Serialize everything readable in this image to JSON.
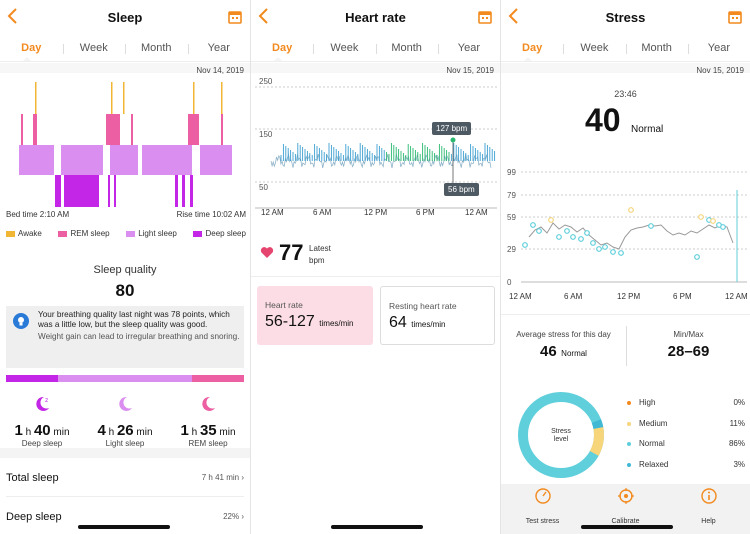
{
  "colors": {
    "accent": "#f28a1f",
    "awake": "#f2b635",
    "rem": "#ec5fa2",
    "light": "#da8ff0",
    "deep": "#c326e6",
    "heart": "#e5446f",
    "stress_normal": "#5fcfdb",
    "stress_medium": "#f7d57a",
    "stress_relaxed": "#41b8d4",
    "stress_high": "#f28a1f"
  },
  "tabs": [
    "Day",
    "Week",
    "Month",
    "Year"
  ],
  "sleep": {
    "title": "Sleep",
    "date": "Nov 14, 2019",
    "bed_time": "Bed time 2:10 AM",
    "rise_time": "Rise time 10:02 AM",
    "legend": [
      {
        "name": "Awake",
        "color": "#f2b635"
      },
      {
        "name": "REM sleep",
        "color": "#ec5fa2"
      },
      {
        "name": "Light sleep",
        "color": "#da8ff0"
      },
      {
        "name": "Deep sleep",
        "color": "#c326e6"
      }
    ],
    "quality_label": "Sleep quality",
    "quality_value": "80",
    "info_main": "Your breathing quality last night was 78 points, which was a little low, but the sleep quality was good.",
    "info_sub": "Weight gain can lead to irregular breathing and snoring.",
    "stage_fractions": [
      0.22,
      0.56,
      0.22
    ],
    "stats": [
      {
        "h": "1",
        "h_unit": "h",
        "m": "40",
        "m_unit": "min",
        "label": "Deep sleep",
        "icon": "moon-deep-icon"
      },
      {
        "h": "4",
        "h_unit": "h",
        "m": "26",
        "m_unit": "min",
        "label": "Light sleep",
        "icon": "moon-light-icon"
      },
      {
        "h": "1",
        "h_unit": "h",
        "m": "35",
        "m_unit": "min",
        "label": "REM sleep",
        "icon": "moon-rem-icon"
      }
    ],
    "rows": [
      {
        "label": "Total sleep",
        "value": "7 h 41 min"
      },
      {
        "label": "Deep sleep",
        "value": "22%"
      }
    ]
  },
  "heart": {
    "title": "Heart rate",
    "date": "Nov 15, 2019",
    "y_ticks": [
      "250",
      "150",
      "50"
    ],
    "x_ticks": [
      "12 AM",
      "6 AM",
      "12 PM",
      "6 PM",
      "12 AM"
    ],
    "max_label": "127 bpm",
    "min_label": "56 bpm",
    "latest_value": "77",
    "latest_caption": "Latest",
    "latest_unit": "bpm",
    "cards": [
      {
        "title": "Heart rate",
        "value": "56-127",
        "unit": "times/min"
      },
      {
        "title": "Resting heart rate",
        "value": "64",
        "unit": "times/min"
      }
    ]
  },
  "stress": {
    "title": "Stress",
    "date": "Nov 15, 2019",
    "time": "23:46",
    "value": "40",
    "level": "Normal",
    "y_ticks": [
      "99",
      "79",
      "59",
      "29",
      "0"
    ],
    "x_ticks": [
      "12 AM",
      "6 AM",
      "12 PM",
      "6 PM",
      "12 AM"
    ],
    "avg_label": "Average stress for this day",
    "avg_value": "46",
    "avg_level": "Normal",
    "minmax_label": "Min/Max",
    "minmax_value": "28–69",
    "donut_label": "Stress level",
    "legend": [
      {
        "name": "High",
        "pct": "0%",
        "color": "#f28a1f"
      },
      {
        "name": "Medium",
        "pct": "11%",
        "color": "#f7d57a"
      },
      {
        "name": "Normal",
        "pct": "86%",
        "color": "#5fcfdb"
      },
      {
        "name": "Relaxed",
        "pct": "3%",
        "color": "#41b8d4"
      }
    ],
    "tabbar": [
      {
        "label": "Test stress",
        "icon": "gauge-icon"
      },
      {
        "label": "Calibrate",
        "icon": "target-icon"
      },
      {
        "label": "Help",
        "icon": "info-icon"
      }
    ]
  }
}
